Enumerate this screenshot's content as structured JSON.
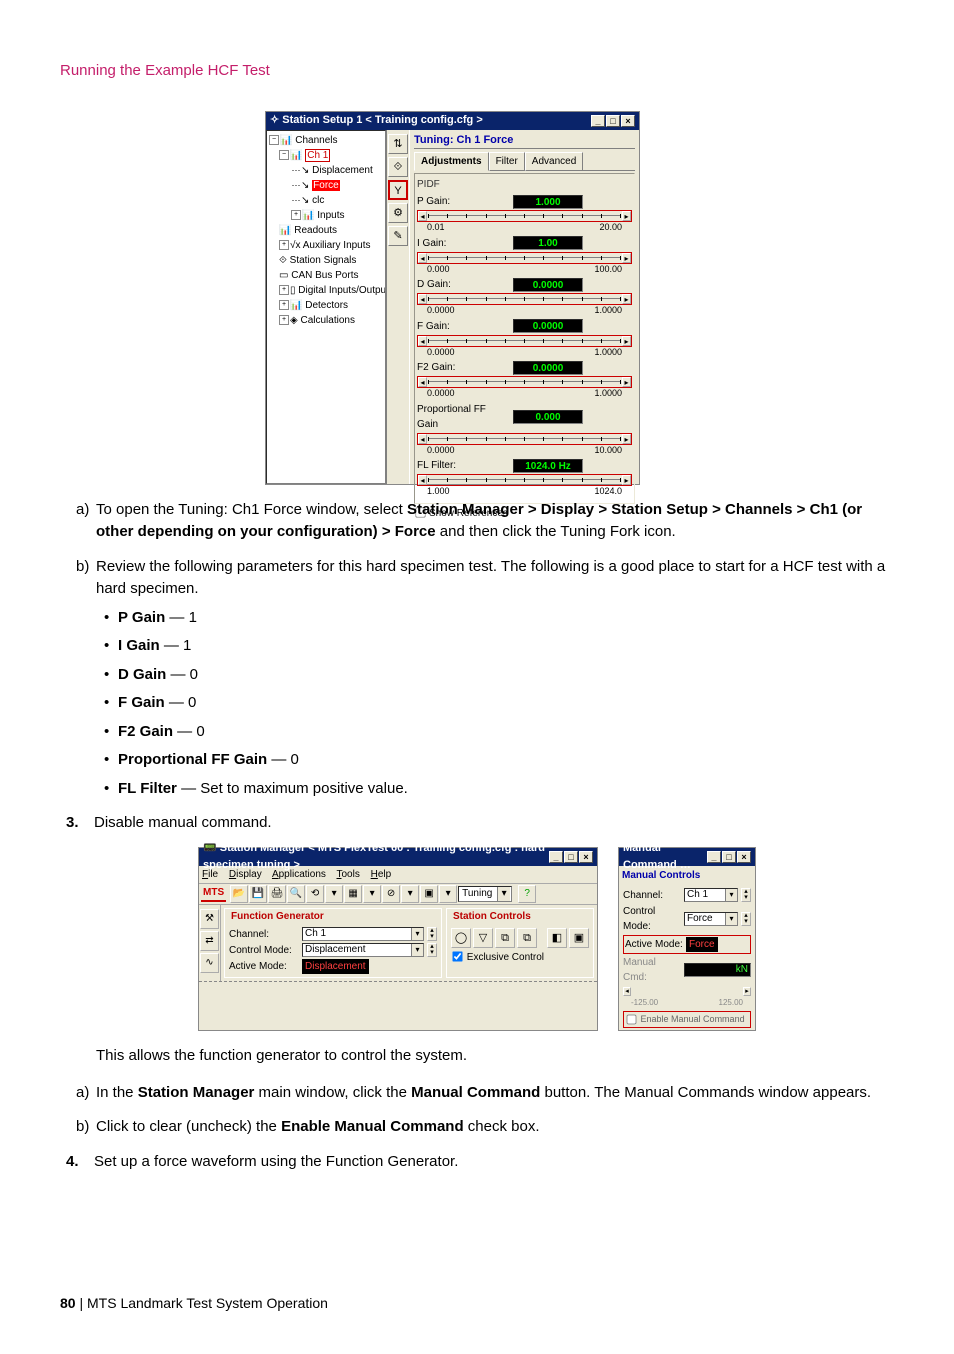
{
  "header": {
    "title": "Running the Example HCF Test"
  },
  "screenshot1": {
    "window_title": "Station Setup 1 < Training config.cfg >",
    "tree": {
      "root": "Channels",
      "ch1": "Ch 1",
      "ch1_children": [
        "Displacement",
        "Force",
        "clc",
        "Inputs"
      ],
      "others": [
        "Readouts",
        "Auxiliary Inputs",
        "Station Signals",
        "CAN Bus Ports",
        "Digital Inputs/Outputs",
        "Detectors",
        "Calculations"
      ]
    },
    "toolbar_icons": [
      "⇅",
      "⟐",
      "Y",
      "⚙",
      "✎"
    ],
    "tuning_title": "Tuning: Ch 1 Force",
    "tabs": [
      "Adjustments",
      "Filter",
      "Advanced"
    ],
    "group_label": "PIDF",
    "params": [
      {
        "label": "P Gain:",
        "value": "1.000",
        "min": "0.01",
        "max": "20.00",
        "unit": ""
      },
      {
        "label": "I Gain:",
        "value": "1.00",
        "min": "0.000",
        "max": "100.00",
        "unit": ""
      },
      {
        "label": "D Gain:",
        "value": "0.0000",
        "min": "0.0000",
        "max": "1.0000",
        "unit": ""
      },
      {
        "label": "F Gain:",
        "value": "0.0000",
        "min": "0.0000",
        "max": "1.0000",
        "unit": ""
      },
      {
        "label": "F2 Gain:",
        "value": "0.0000",
        "min": "0.0000",
        "max": "1.0000",
        "unit": ""
      },
      {
        "label": "Proportional FF Gain",
        "value": "0.000",
        "min": "0.0000",
        "max": "10.000",
        "unit": ""
      },
      {
        "label": "FL Filter:",
        "value": "1024.0",
        "min": "1.000",
        "max": "1024.0",
        "unit": "Hz"
      }
    ],
    "show_refs": "Show References"
  },
  "instructions": {
    "a_prefix": "To open the Tuning: Ch1 Force window, select ",
    "a_bold": "Station Manager > Display > Station Setup > Channels > Ch1 (or other depending on your configuration) > Force",
    "a_suffix": " and then click the Tuning Fork icon.",
    "b": "Review the following parameters for this hard specimen test. The following is a good place to start for a HCF test with a hard specimen.",
    "bullets": [
      {
        "k": "P Gain",
        "v": " — 1"
      },
      {
        "k": "I Gain",
        "v": " — 1"
      },
      {
        "k": "D Gain",
        "v": " — 0"
      },
      {
        "k": "F Gain",
        "v": " — 0"
      },
      {
        "k": "F2 Gain",
        "v": " — 0"
      },
      {
        "k": "Proportional FF Gain",
        "v": " — 0"
      },
      {
        "k": "FL Filter",
        "v": " — Set to maximum positive value."
      }
    ],
    "step3": "Disable manual command."
  },
  "screenshot2a": {
    "window_title": "Station Manager < MTS FlexTest 60 : Training config.cfg : hard specimen tuning >",
    "menu": [
      "File",
      "Display",
      "Applications",
      "Tools",
      "Help"
    ],
    "logo": "MTS",
    "toolbar_combo": "Tuning",
    "fn_gen_title": "Function Generator",
    "channel_label": "Channel:",
    "channel_value": "Ch 1",
    "control_mode_label": "Control Mode:",
    "control_mode_value": "Displacement",
    "active_mode_label": "Active Mode:",
    "active_mode_value": "Displacement",
    "sc_title": "Station Controls",
    "exclusive": "Exclusive Control"
  },
  "screenshot2b": {
    "window_title": "Manual Command …",
    "section": "Manual Controls",
    "channel_label": "Channel:",
    "channel_value": "Ch 1",
    "control_mode_label": "Control Mode:",
    "control_mode_value": "Force",
    "active_mode_label": "Active Mode:",
    "active_mode_value": "Force",
    "manual_cmd_label": "Manual Cmd:",
    "manual_cmd_value": "",
    "manual_cmd_unit": "kN",
    "range_min": "-125.00",
    "range_max": "125.00",
    "enable": "Enable Manual Command"
  },
  "after_ss2": {
    "p1": "This allows the function generator to control the system.",
    "a_pre": "In the ",
    "a_b1": "Station Manager",
    "a_mid": " main window, click the ",
    "a_b2": "Manual Command",
    "a_suf": " button. The Manual Commands window appears.",
    "b_pre": "Click to clear (uncheck) the ",
    "b_b": "Enable Manual Command",
    "b_suf": " check box.",
    "step4": "Set up a force waveform using the Function Generator."
  },
  "footer": {
    "page": "80",
    "sep": " | ",
    "doc": "MTS Landmark Test System Operation"
  }
}
